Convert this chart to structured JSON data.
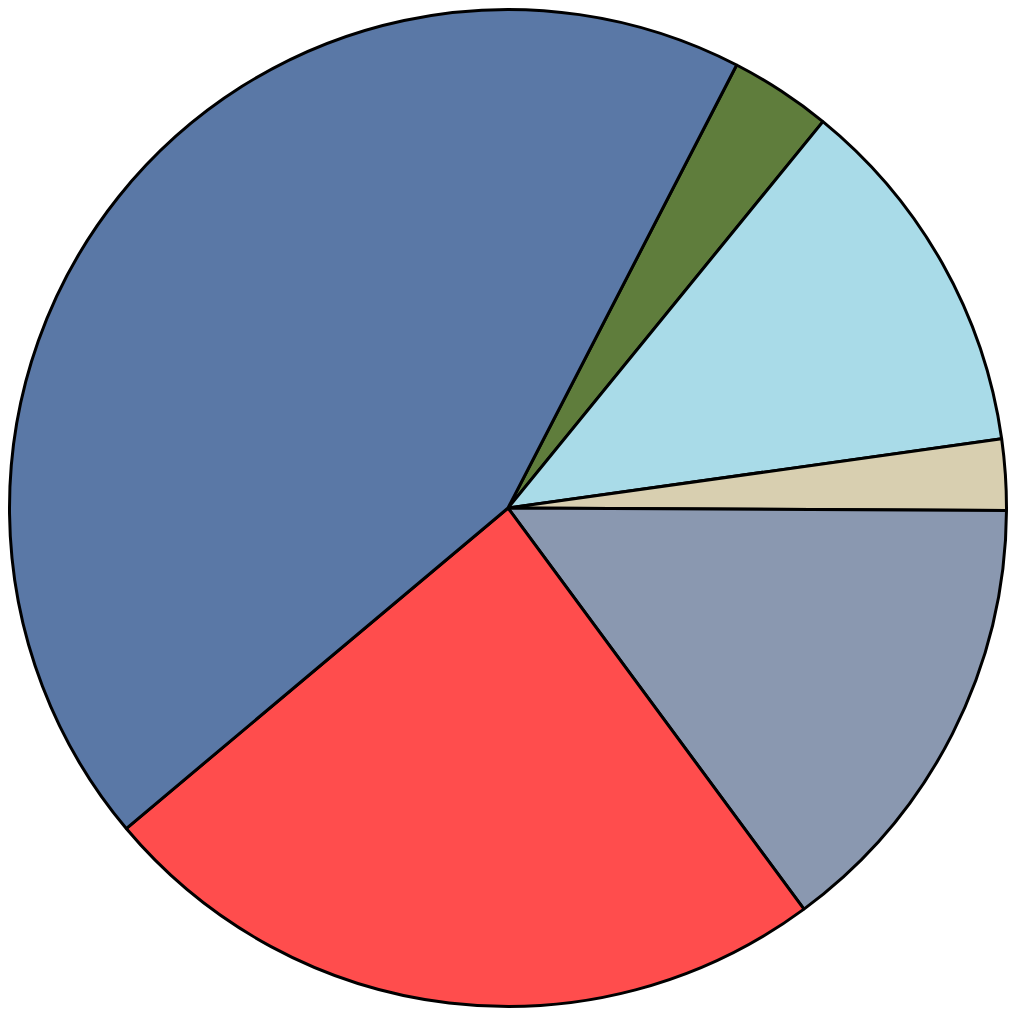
{
  "chart_data": {
    "type": "pie",
    "categories": [
      null,
      null,
      null,
      null,
      null,
      null
    ],
    "values": [
      3.3,
      11.9,
      2.3,
      14.8,
      24,
      43.7
    ],
    "colors": [
      "#5f7d3c",
      "#a9dbe8",
      "#d8cfb0",
      "#8a98b0",
      "#ff4d4d",
      "#5a78a6"
    ],
    "legend": false
  }
}
